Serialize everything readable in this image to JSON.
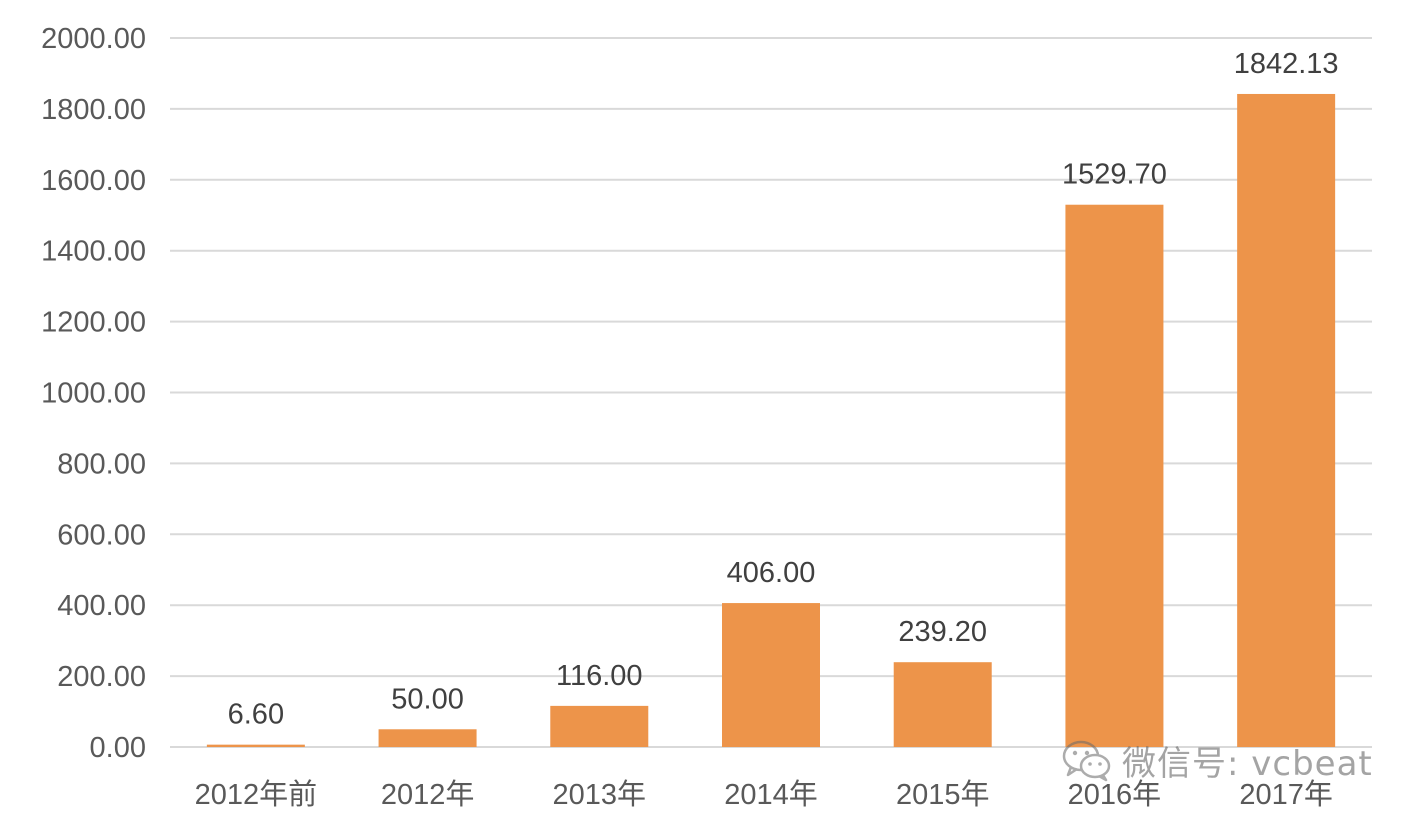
{
  "chart_data": {
    "type": "bar",
    "categories": [
      "2012年前",
      "2012年",
      "2013年",
      "2014年",
      "2015年",
      "2016年",
      "2017年"
    ],
    "values": [
      6.6,
      50.0,
      116.0,
      406.0,
      239.2,
      1529.7,
      1842.13
    ],
    "value_labels": [
      "6.60",
      "50.00",
      "116.00",
      "406.00",
      "239.20",
      "1529.70",
      "1842.13"
    ],
    "y_ticks": [
      "0.00",
      "200.00",
      "400.00",
      "600.00",
      "800.00",
      "1000.00",
      "1200.00",
      "1400.00",
      "1600.00",
      "1800.00",
      "2000.00"
    ],
    "ylim": [
      0,
      2000
    ],
    "grid": true,
    "bar_color": "#ED944A",
    "grid_color": "#D9D9D9",
    "title": "",
    "xlabel": "",
    "ylabel": ""
  },
  "watermark": {
    "text": "微信号: vcbeat",
    "icon": "wechat-icon"
  }
}
